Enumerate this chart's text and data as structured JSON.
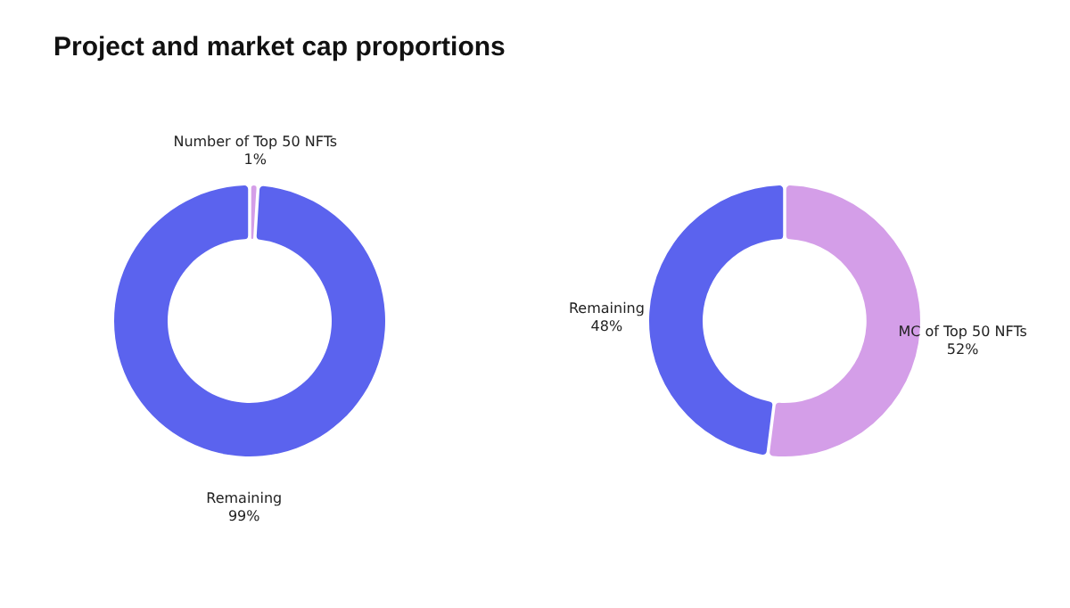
{
  "chart_data": [
    {
      "type": "donut",
      "title": "Project and market cap proportions",
      "categories": [
        "Number of Top 50 NFTs",
        "Remaining"
      ],
      "values": [
        1,
        99
      ],
      "colors": [
        "#d49ee8",
        "#5b63ee"
      ],
      "value_labels": [
        "1%",
        "99%"
      ],
      "legend": false
    },
    {
      "type": "donut",
      "categories": [
        "MC of Top 50 NFTs",
        "Remaining"
      ],
      "values": [
        52,
        48
      ],
      "colors": [
        "#d49ee8",
        "#5b63ee"
      ],
      "value_labels": [
        "52%",
        "48%"
      ],
      "legend": false
    }
  ]
}
